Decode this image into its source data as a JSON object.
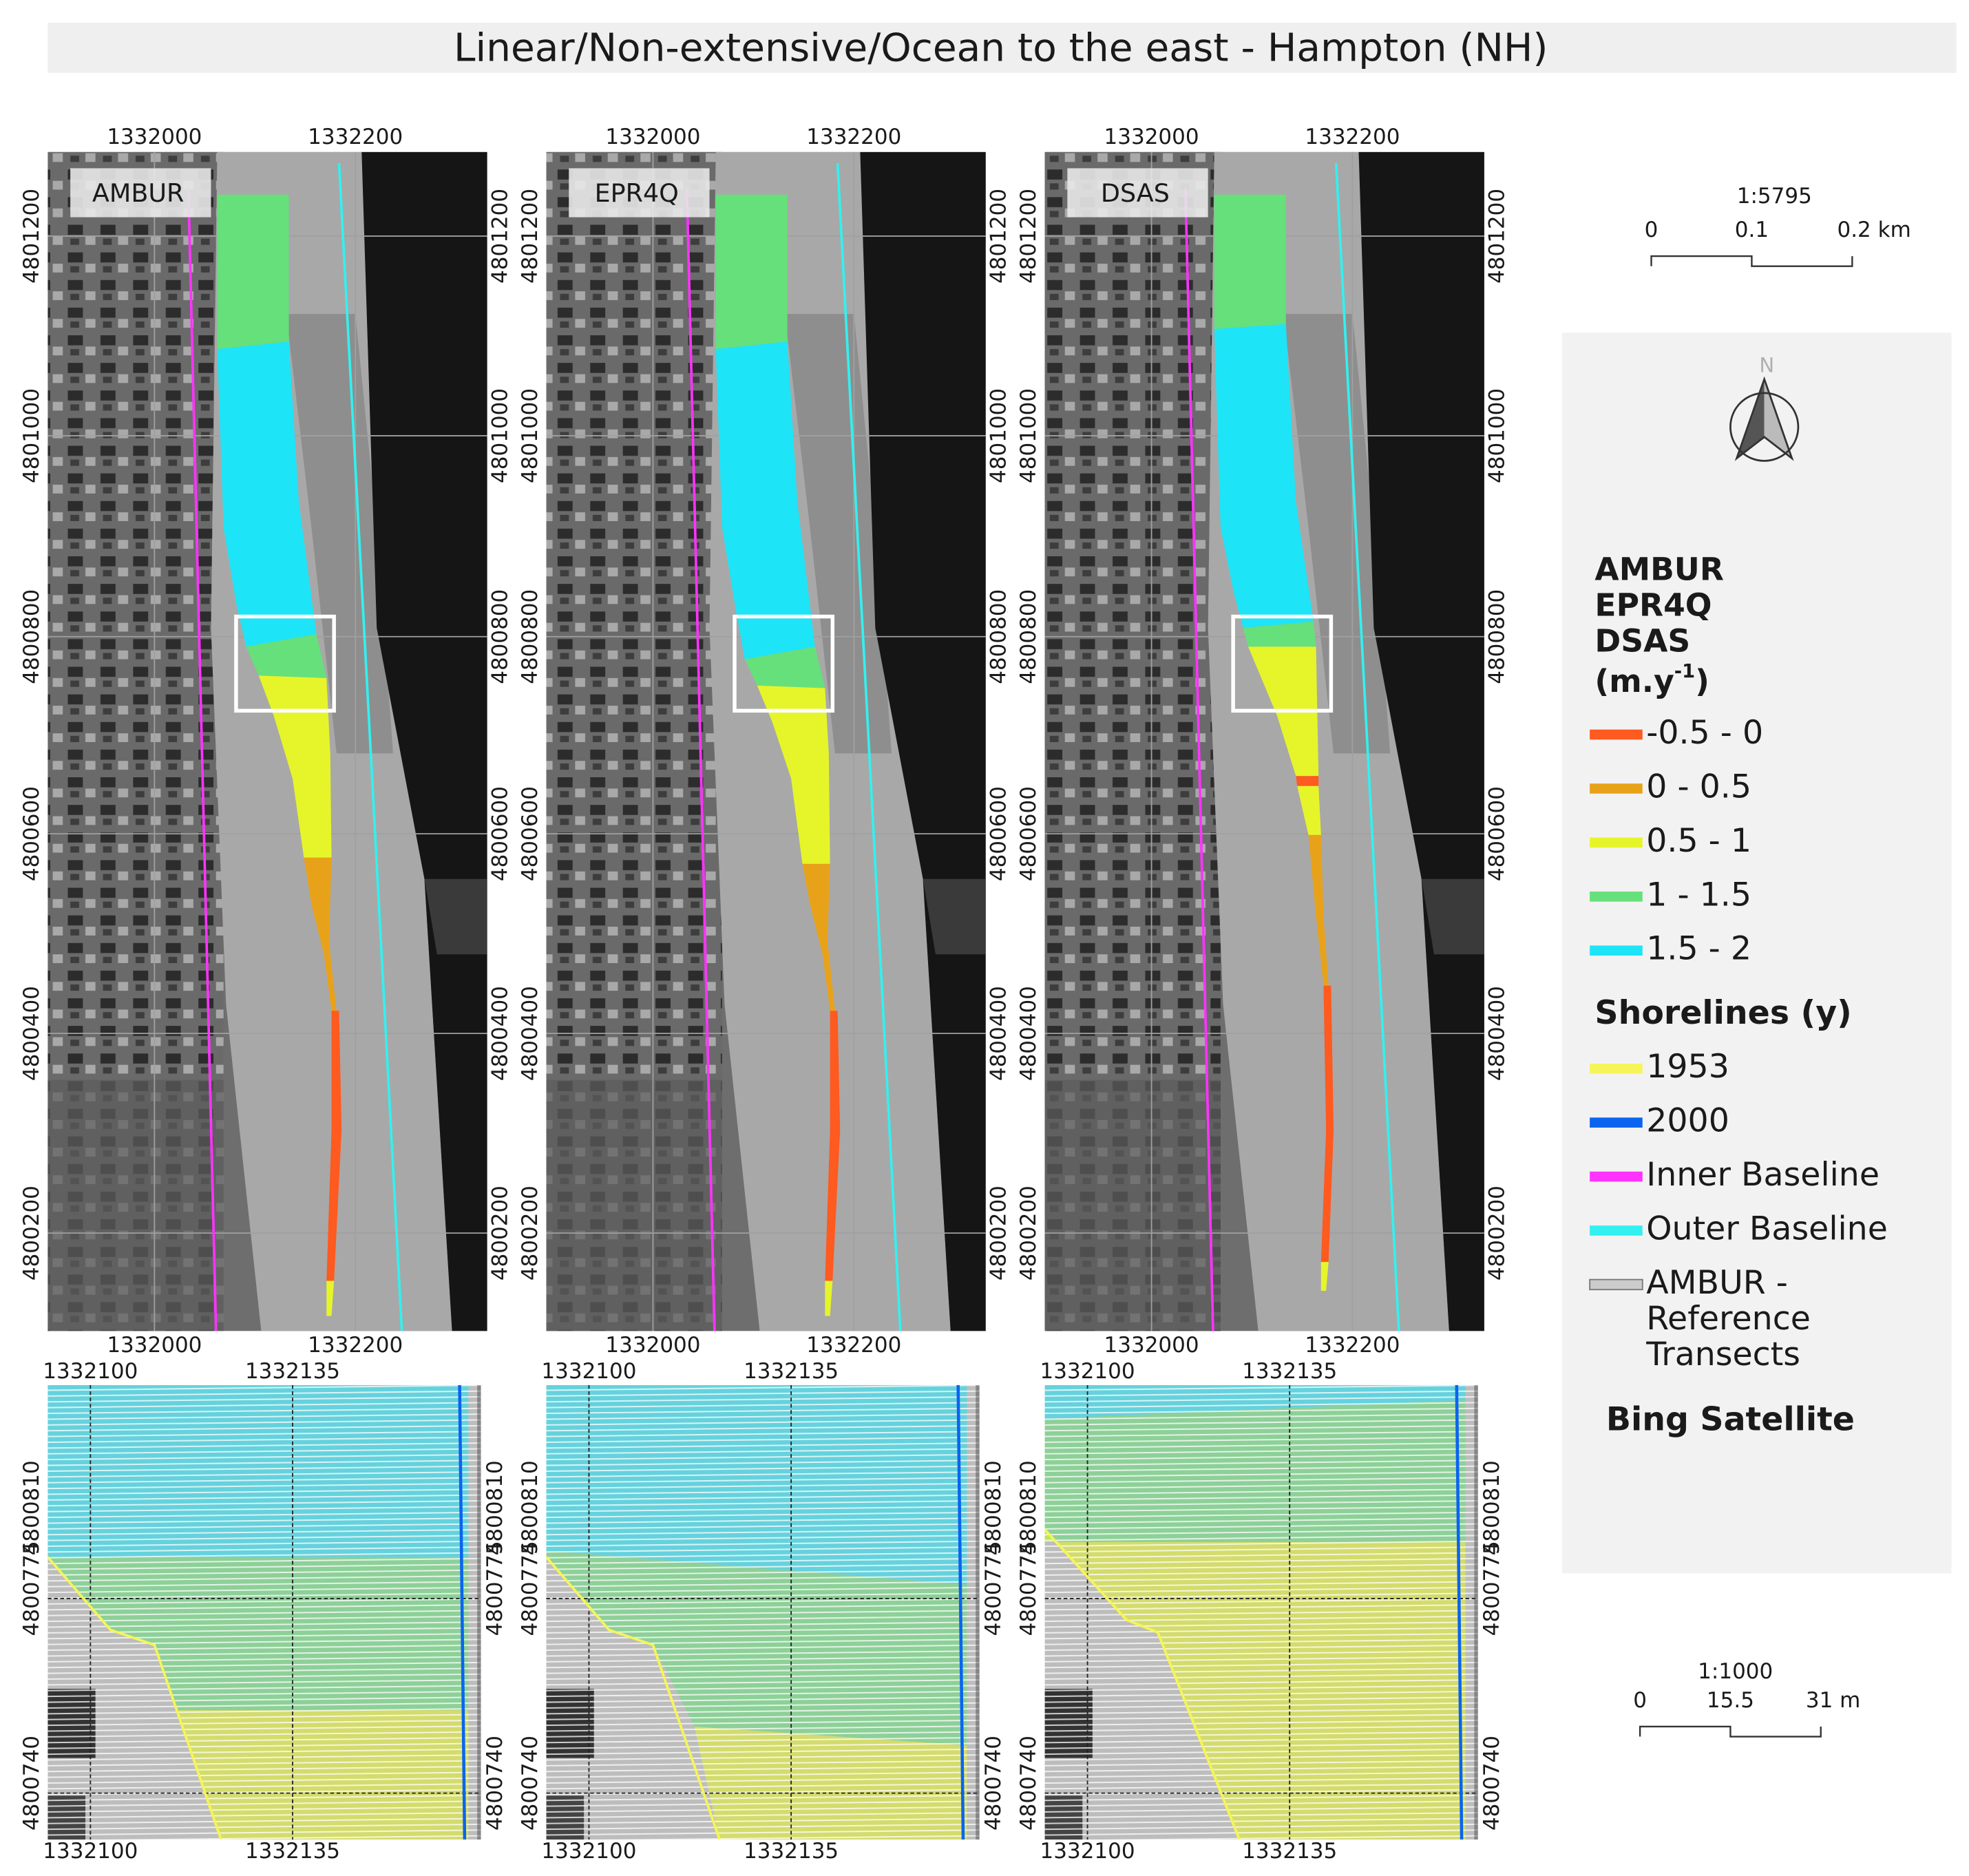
{
  "title": "Linear/Non-extensive/Ocean to the east - Hampton (NH)",
  "panels": [
    {
      "label": "AMBUR"
    },
    {
      "label": "EPR4Q"
    },
    {
      "label": "DSAS"
    }
  ],
  "top_map": {
    "x_labels": [
      "1332000",
      "1332200"
    ],
    "y_labels": [
      "4801200",
      "4801000",
      "4800800",
      "4800600",
      "4800400",
      "4800200"
    ]
  },
  "bottom_map": {
    "x_labels": [
      "1332100",
      "1332135"
    ],
    "y_labels": [
      "4800810",
      "4800775",
      "4800740"
    ]
  },
  "scale_bars": [
    {
      "ratio": "1:5795",
      "ticks": [
        "0",
        "0.1",
        "0.2 km"
      ]
    },
    {
      "ratio": "1:1000",
      "ticks": [
        "0",
        "15.5",
        "31 m"
      ]
    }
  ],
  "legend": {
    "north": "N",
    "rate_title": [
      "AMBUR",
      "EPR4Q",
      "DSAS"
    ],
    "rate_unit": "(m.y",
    "rate_unit_exp": "-1",
    "rate_unit_end": ")",
    "rate_items": [
      {
        "label": "-0.5 - 0",
        "color": "#ff5a1f"
      },
      {
        "label": "0 - 0.5",
        "color": "#e8a21a"
      },
      {
        "label": "0.5 - 1",
        "color": "#e6f52a"
      },
      {
        "label": "1 - 1.5",
        "color": "#66e07a"
      },
      {
        "label": "1.5 - 2",
        "color": "#1ee4f7"
      }
    ],
    "shoreline_title": "Shorelines (y)",
    "shoreline_items": [
      {
        "label": "1953",
        "color": "#f5f55a"
      },
      {
        "label": "2000",
        "color": "#0a64f0"
      },
      {
        "label": "Inner Baseline",
        "color": "#ff33ff"
      },
      {
        "label": "Outer Baseline",
        "color": "#33f0f0"
      },
      {
        "label": [
          "AMBUR -",
          "Reference",
          "Transects"
        ],
        "color": "#cccccc"
      }
    ],
    "basemap": "Bing Satellite"
  }
}
